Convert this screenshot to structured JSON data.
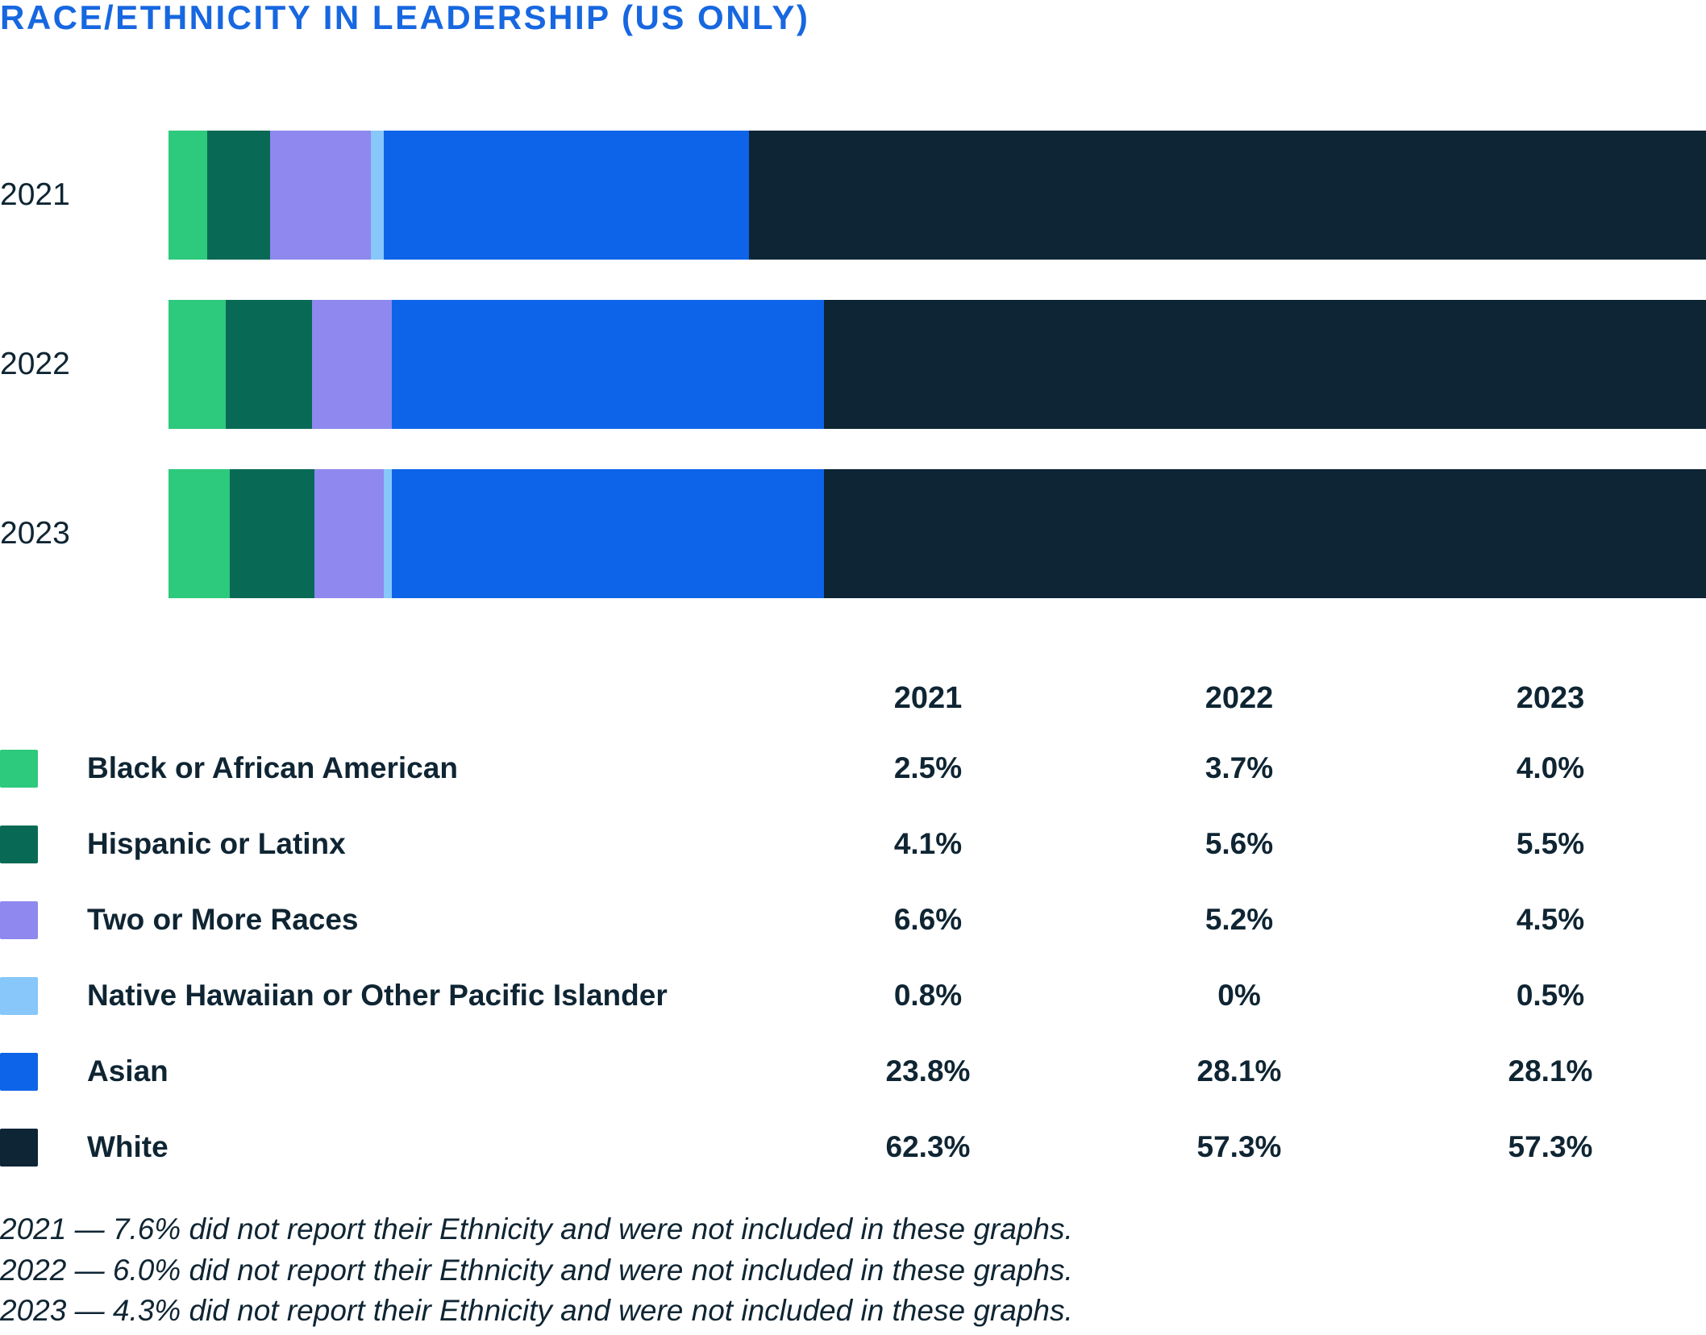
{
  "title": "RACE/ETHNICITY IN LEADERSHIP (US ONLY)",
  "colors": {
    "title": "#1767e0",
    "text": "#0f2533"
  },
  "chart_data": {
    "type": "bar",
    "stacked": true,
    "orientation": "horizontal",
    "title": "RACE/ETHNICITY IN LEADERSHIP (US ONLY)",
    "categories": [
      "2021",
      "2022",
      "2023"
    ],
    "series": [
      {
        "name": "Black or African American",
        "color": "#2dc97c",
        "values": [
          2.5,
          3.7,
          4.0
        ]
      },
      {
        "name": "Hispanic or Latinx",
        "color": "#086a55",
        "values": [
          4.1,
          5.6,
          5.5
        ]
      },
      {
        "name": "Two or More Races",
        "color": "#8e88ef",
        "values": [
          6.6,
          5.2,
          4.5
        ]
      },
      {
        "name": "Native Hawaiian or Other Pacific Islander",
        "color": "#87c7f9",
        "values": [
          0.8,
          0,
          0.5
        ]
      },
      {
        "name": "Asian",
        "color": "#0d64e8",
        "values": [
          23.8,
          28.1,
          28.1
        ]
      },
      {
        "name": "White",
        "color": "#0d2535",
        "values": [
          62.3,
          57.3,
          57.3
        ]
      }
    ],
    "xlim": [
      0,
      100
    ],
    "grid": false,
    "legend_position": "table-below"
  },
  "table": {
    "headers": [
      "2021",
      "2022",
      "2023"
    ],
    "value_labels": [
      [
        "2.5%",
        "3.7%",
        "4.0%"
      ],
      [
        "4.1%",
        "5.6%",
        "5.5%"
      ],
      [
        "6.6%",
        "5.2%",
        "4.5%"
      ],
      [
        "0.8%",
        "0%",
        "0.5%"
      ],
      [
        "23.8%",
        "28.1%",
        "28.1%"
      ],
      [
        "62.3%",
        "57.3%",
        "57.3%"
      ]
    ]
  },
  "footnotes": [
    "2021 — 7.6% did not report their Ethnicity and were not included in these graphs.",
    "2022 — 6.0% did not report their Ethnicity and were not included in these graphs.",
    "2023 — 4.3% did not report their Ethnicity and were not included in these graphs."
  ]
}
